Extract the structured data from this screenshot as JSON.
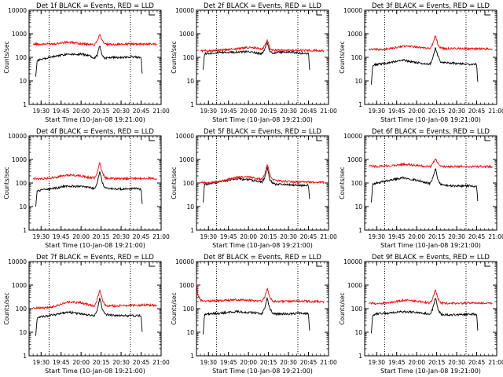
{
  "figure": {
    "ylabel": "Counts/sec",
    "xlabel": "Start Time (10-Jan-08 19:21:00)",
    "legend_tag": "BLACK = Events, RED = LLD",
    "x_ticks": [
      "19:30",
      "19:45",
      "20:00",
      "20:15",
      "20:30",
      "20:45",
      "21:00"
    ],
    "y_ticks": [
      "1",
      "10",
      "100",
      "1000",
      "10000"
    ]
  },
  "chart_data": [
    {
      "type": "line",
      "title": "Det 1f BLACK = Events, RED = LLD",
      "xlabel": "Start Time (10-Jan-08 19:21:00)",
      "ylabel": "Counts/sec",
      "xlim": [
        "19:21",
        "21:00"
      ],
      "ylim": [
        1,
        10000
      ],
      "yscale": "log",
      "dotted_vlines": [
        "19:36",
        "20:37"
      ],
      "series": [
        {
          "name": "Events",
          "color": "#000000",
          "x": [
            "19:26",
            "19:27",
            "19:30",
            "19:40",
            "19:50",
            "20:00",
            "20:05",
            "20:10",
            "20:12",
            "20:14",
            "20:16",
            "20:18",
            "20:20",
            "20:30",
            "20:40",
            "20:45",
            "20:46"
          ],
          "values": [
            15,
            75,
            80,
            110,
            140,
            135,
            125,
            95,
            120,
            320,
            120,
            90,
            100,
            100,
            105,
            95,
            14
          ]
        },
        {
          "name": "LLD",
          "color": "#ff0000",
          "x": [
            "19:24",
            "19:30",
            "19:40",
            "19:50",
            "20:00",
            "20:05",
            "20:10",
            "20:12",
            "20:14",
            "20:16",
            "20:18",
            "20:20",
            "20:30",
            "20:40",
            "20:50",
            "20:57"
          ],
          "values": [
            370,
            360,
            380,
            440,
            380,
            360,
            340,
            500,
            1000,
            500,
            360,
            350,
            360,
            370,
            370,
            365
          ]
        }
      ]
    },
    {
      "type": "line",
      "title": "Det 2f BLACK = Events, RED = LLD",
      "xlabel": "Start Time (10-Jan-08 19:21:00)",
      "ylabel": "Counts/sec",
      "xlim": [
        "19:21",
        "21:00"
      ],
      "ylim": [
        1,
        10000
      ],
      "yscale": "log",
      "dotted_vlines": [
        "19:36",
        "20:37"
      ],
      "series": [
        {
          "name": "Events",
          "color": "#000000",
          "x": [
            "19:26",
            "19:27",
            "19:30",
            "19:40",
            "19:50",
            "20:00",
            "20:05",
            "20:10",
            "20:12",
            "20:14",
            "20:16",
            "20:18",
            "20:20",
            "20:30",
            "20:40",
            "20:45",
            "20:46"
          ],
          "values": [
            30,
            140,
            150,
            160,
            170,
            170,
            160,
            140,
            200,
            420,
            180,
            150,
            160,
            170,
            150,
            145,
            20
          ]
        },
        {
          "name": "LLD",
          "color": "#ff0000",
          "x": [
            "19:24",
            "19:30",
            "19:40",
            "19:50",
            "20:00",
            "20:05",
            "20:10",
            "20:12",
            "20:14",
            "20:16",
            "20:18",
            "20:20",
            "20:30",
            "20:40",
            "20:50",
            "20:57"
          ],
          "values": [
            190,
            190,
            200,
            230,
            260,
            250,
            220,
            300,
            560,
            260,
            210,
            200,
            200,
            195,
            195,
            190
          ]
        }
      ]
    },
    {
      "type": "line",
      "title": "Det 3f BLACK = Events, RED = LLD",
      "xlabel": "Start Time (10-Jan-08 19:21:00)",
      "ylabel": "Counts/sec",
      "xlim": [
        "19:21",
        "21:00"
      ],
      "ylim": [
        1,
        10000
      ],
      "yscale": "log",
      "dotted_vlines": [
        "19:36",
        "20:37"
      ],
      "series": [
        {
          "name": "Events",
          "color": "#000000",
          "x": [
            "19:26",
            "19:27",
            "19:30",
            "19:40",
            "19:50",
            "20:00",
            "20:05",
            "20:10",
            "20:12",
            "20:14",
            "20:16",
            "20:18",
            "20:20",
            "20:30",
            "20:40",
            "20:45",
            "20:46"
          ],
          "values": [
            7,
            45,
            50,
            60,
            75,
            60,
            55,
            50,
            90,
            260,
            110,
            65,
            60,
            55,
            50,
            50,
            6
          ]
        },
        {
          "name": "LLD",
          "color": "#ff0000",
          "x": [
            "19:24",
            "19:30",
            "19:40",
            "19:50",
            "20:00",
            "20:05",
            "20:10",
            "20:12",
            "20:14",
            "20:16",
            "20:18",
            "20:20",
            "20:30",
            "20:40",
            "20:50",
            "20:57"
          ],
          "values": [
            220,
            210,
            230,
            300,
            280,
            250,
            240,
            350,
            820,
            360,
            250,
            230,
            240,
            230,
            230,
            225
          ]
        }
      ]
    },
    {
      "type": "line",
      "title": "Det 4f BLACK = Events, RED = LLD",
      "xlabel": "Start Time (10-Jan-08 19:21:00)",
      "ylabel": "Counts/sec",
      "xlim": [
        "19:21",
        "21:00"
      ],
      "ylim": [
        1,
        10000
      ],
      "yscale": "log",
      "dotted_vlines": [
        "19:36",
        "20:37"
      ],
      "series": [
        {
          "name": "Events",
          "color": "#000000",
          "x": [
            "19:26",
            "19:27",
            "19:30",
            "19:40",
            "19:50",
            "20:00",
            "20:05",
            "20:10",
            "20:12",
            "20:14",
            "20:16",
            "20:18",
            "20:20",
            "20:30",
            "20:40",
            "20:45",
            "20:46"
          ],
          "values": [
            10,
            45,
            50,
            60,
            75,
            70,
            65,
            60,
            90,
            330,
            100,
            60,
            60,
            55,
            60,
            55,
            9
          ]
        },
        {
          "name": "LLD",
          "color": "#ff0000",
          "x": [
            "19:24",
            "19:30",
            "19:40",
            "19:50",
            "20:00",
            "20:05",
            "20:10",
            "20:12",
            "20:14",
            "20:16",
            "20:18",
            "20:20",
            "20:30",
            "20:40",
            "20:50",
            "20:57"
          ],
          "values": [
            155,
            150,
            170,
            220,
            200,
            175,
            165,
            250,
            750,
            260,
            170,
            155,
            150,
            155,
            160,
            155
          ]
        }
      ]
    },
    {
      "type": "line",
      "title": "Det 5f BLACK = Events, RED = LLD",
      "xlabel": "Start Time (10-Jan-08 19:21:00)",
      "ylabel": "Counts/sec",
      "xlim": [
        "19:21",
        "21:00"
      ],
      "ylim": [
        1,
        10000
      ],
      "yscale": "log",
      "dotted_vlines": [
        "19:36",
        "20:37"
      ],
      "series": [
        {
          "name": "Events",
          "color": "#000000",
          "x": [
            "19:26",
            "19:27",
            "19:30",
            "19:40",
            "19:50",
            "20:00",
            "20:05",
            "20:10",
            "20:12",
            "20:14",
            "20:16",
            "20:18",
            "20:20",
            "20:30",
            "20:40",
            "20:45",
            "20:46"
          ],
          "values": [
            15,
            85,
            90,
            115,
            150,
            140,
            125,
            110,
            160,
            480,
            140,
            100,
            90,
            85,
            80,
            80,
            15
          ]
        },
        {
          "name": "LLD",
          "color": "#ff0000",
          "x": [
            "19:24",
            "19:30",
            "19:40",
            "19:50",
            "20:00",
            "20:05",
            "20:10",
            "20:12",
            "20:14",
            "20:16",
            "20:18",
            "20:20",
            "20:30",
            "20:40",
            "20:50",
            "20:57"
          ],
          "values": [
            105,
            100,
            120,
            170,
            180,
            160,
            140,
            220,
            620,
            230,
            140,
            125,
            115,
            110,
            110,
            108
          ]
        }
      ]
    },
    {
      "type": "line",
      "title": "Det 6f BLACK = Events, RED = LLD",
      "xlabel": "Start Time (10-Jan-08 19:21:00)",
      "ylabel": "Counts/sec",
      "xlim": [
        "19:21",
        "21:00"
      ],
      "ylim": [
        1,
        10000
      ],
      "yscale": "log",
      "dotted_vlines": [
        "19:36",
        "20:37"
      ],
      "series": [
        {
          "name": "Events",
          "color": "#000000",
          "x": [
            "19:26",
            "19:27",
            "19:30",
            "19:40",
            "19:50",
            "20:00",
            "20:05",
            "20:10",
            "20:12",
            "20:14",
            "20:16",
            "20:18",
            "20:20",
            "20:30",
            "20:40",
            "20:45",
            "20:46"
          ],
          "values": [
            15,
            90,
            100,
            130,
            170,
            130,
            110,
            95,
            160,
            430,
            130,
            90,
            80,
            75,
            75,
            70,
            12
          ]
        },
        {
          "name": "LLD",
          "color": "#ff0000",
          "x": [
            "19:24",
            "19:30",
            "19:40",
            "19:50",
            "20:00",
            "20:05",
            "20:10",
            "20:12",
            "20:14",
            "20:16",
            "20:18",
            "20:20",
            "20:30",
            "20:40",
            "20:50",
            "20:57"
          ],
          "values": [
            520,
            510,
            540,
            620,
            560,
            520,
            500,
            650,
            1050,
            640,
            520,
            500,
            510,
            500,
            500,
            495
          ]
        }
      ]
    },
    {
      "type": "line",
      "title": "Det 7f BLACK = Events, RED = LLD",
      "xlabel": "Start Time (10-Jan-08 19:21:00)",
      "ylabel": "Counts/sec",
      "xlim": [
        "19:21",
        "21:00"
      ],
      "ylim": [
        1,
        10000
      ],
      "yscale": "log",
      "dotted_vlines": [
        "19:36",
        "20:37"
      ],
      "series": [
        {
          "name": "Events",
          "color": "#000000",
          "x": [
            "19:26",
            "19:27",
            "19:30",
            "19:40",
            "19:50",
            "20:00",
            "20:05",
            "20:10",
            "20:12",
            "20:14",
            "20:16",
            "20:18",
            "20:20",
            "20:30",
            "20:40",
            "20:45",
            "20:46"
          ],
          "values": [
            7,
            40,
            45,
            55,
            70,
            60,
            55,
            50,
            80,
            280,
            95,
            60,
            55,
            50,
            50,
            50,
            7
          ]
        },
        {
          "name": "LLD",
          "color": "#ff0000",
          "x": [
            "19:24",
            "19:30",
            "19:40",
            "19:50",
            "20:00",
            "20:05",
            "20:10",
            "20:12",
            "20:14",
            "20:16",
            "20:18",
            "20:20",
            "20:30",
            "20:40",
            "20:50",
            "20:57"
          ],
          "values": [
            110,
            105,
            125,
            190,
            180,
            150,
            130,
            230,
            650,
            240,
            140,
            130,
            135,
            140,
            145,
            140
          ]
        }
      ]
    },
    {
      "type": "line",
      "title": "Det 8f BLACK = Events, RED = LLD",
      "xlabel": "Start Time (10-Jan-08 19:21:00)",
      "ylabel": "Counts/sec",
      "xlim": [
        "19:21",
        "21:00"
      ],
      "ylim": [
        1,
        10000
      ],
      "yscale": "log",
      "dotted_vlines": [
        "19:36",
        "20:37"
      ],
      "series": [
        {
          "name": "Events",
          "color": "#000000",
          "x": [
            "19:26",
            "19:27",
            "19:30",
            "19:40",
            "19:50",
            "20:00",
            "20:05",
            "20:10",
            "20:12",
            "20:14",
            "20:16",
            "20:18",
            "20:20",
            "20:30",
            "20:40",
            "20:45",
            "20:46"
          ],
          "values": [
            8,
            55,
            60,
            65,
            75,
            70,
            65,
            60,
            100,
            280,
            100,
            65,
            60,
            60,
            65,
            60,
            8
          ]
        },
        {
          "name": "LLD",
          "color": "#ff0000",
          "x": [
            "19:21",
            "19:22",
            "19:24",
            "19:30",
            "19:40",
            "19:50",
            "20:00",
            "20:05",
            "20:10",
            "20:12",
            "20:14",
            "20:16",
            "20:18",
            "20:20",
            "20:30",
            "20:40",
            "20:50",
            "20:57"
          ],
          "values": [
            1200,
            400,
            230,
            210,
            220,
            240,
            230,
            215,
            205,
            300,
            720,
            310,
            210,
            200,
            205,
            210,
            200,
            195
          ]
        }
      ]
    },
    {
      "type": "line",
      "title": "Det 9f BLACK = Events, RED = LLD",
      "xlabel": "Start Time (10-Jan-08 19:21:00)",
      "ylabel": "Counts/sec",
      "xlim": [
        "19:21",
        "21:00"
      ],
      "ylim": [
        1,
        10000
      ],
      "yscale": "log",
      "dotted_vlines": [
        "19:36",
        "20:37"
      ],
      "series": [
        {
          "name": "Events",
          "color": "#000000",
          "x": [
            "19:26",
            "19:27",
            "19:30",
            "19:40",
            "19:50",
            "20:00",
            "20:05",
            "20:10",
            "20:12",
            "20:14",
            "20:16",
            "20:18",
            "20:20",
            "20:30",
            "20:40",
            "20:45",
            "20:46"
          ],
          "values": [
            9,
            55,
            60,
            65,
            75,
            70,
            65,
            60,
            95,
            300,
            95,
            60,
            55,
            55,
            60,
            55,
            8
          ]
        },
        {
          "name": "LLD",
          "color": "#ff0000",
          "x": [
            "19:24",
            "19:30",
            "19:40",
            "19:50",
            "20:00",
            "20:05",
            "20:10",
            "20:12",
            "20:14",
            "20:16",
            "20:18",
            "20:20",
            "20:30",
            "20:40",
            "20:50",
            "20:57"
          ],
          "values": [
            170,
            165,
            180,
            230,
            210,
            185,
            175,
            260,
            650,
            260,
            180,
            170,
            170,
            175,
            170,
            165
          ]
        }
      ]
    }
  ]
}
